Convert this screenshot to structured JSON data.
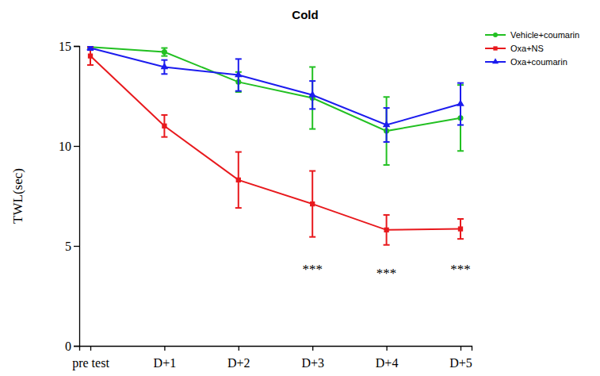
{
  "chart_data": {
    "type": "line",
    "title": "Cold",
    "y_label": "TWL(sec)",
    "categories": [
      "pre test",
      "D+1",
      "D+2",
      "D+3",
      "D+4",
      "D+5"
    ],
    "series": [
      {
        "name": "Vehicle+coumarin",
        "color": "#22c022",
        "marker": "circle",
        "values": [
          14.95,
          14.7,
          13.2,
          12.4,
          10.75,
          11.4
        ],
        "errors": [
          0.05,
          0.2,
          0.5,
          1.55,
          1.7,
          1.65
        ]
      },
      {
        "name": "Oxa+NS",
        "color": "#e8191d",
        "marker": "square",
        "values": [
          14.5,
          11.0,
          8.3,
          7.1,
          5.8,
          5.85
        ],
        "errors": [
          0.45,
          0.55,
          1.4,
          1.65,
          0.75,
          0.5
        ]
      },
      {
        "name": "Oxa+coumarin",
        "color": "#1c1cee",
        "marker": "triangle",
        "values": [
          14.9,
          13.95,
          13.55,
          12.55,
          11.05,
          12.1
        ],
        "errors": [
          0.1,
          0.35,
          0.8,
          0.7,
          0.85,
          1.05
        ]
      }
    ],
    "ylim": [
      0,
      15
    ],
    "yticks": [
      0,
      5,
      10,
      15
    ],
    "legend": "top-right",
    "annotations": [
      {
        "text": "***",
        "x": "D+3",
        "y": 4.4
      },
      {
        "text": "***",
        "x": "D+4",
        "y": 4.2
      },
      {
        "text": "***",
        "x": "D+5",
        "y": 4.4
      }
    ]
  }
}
